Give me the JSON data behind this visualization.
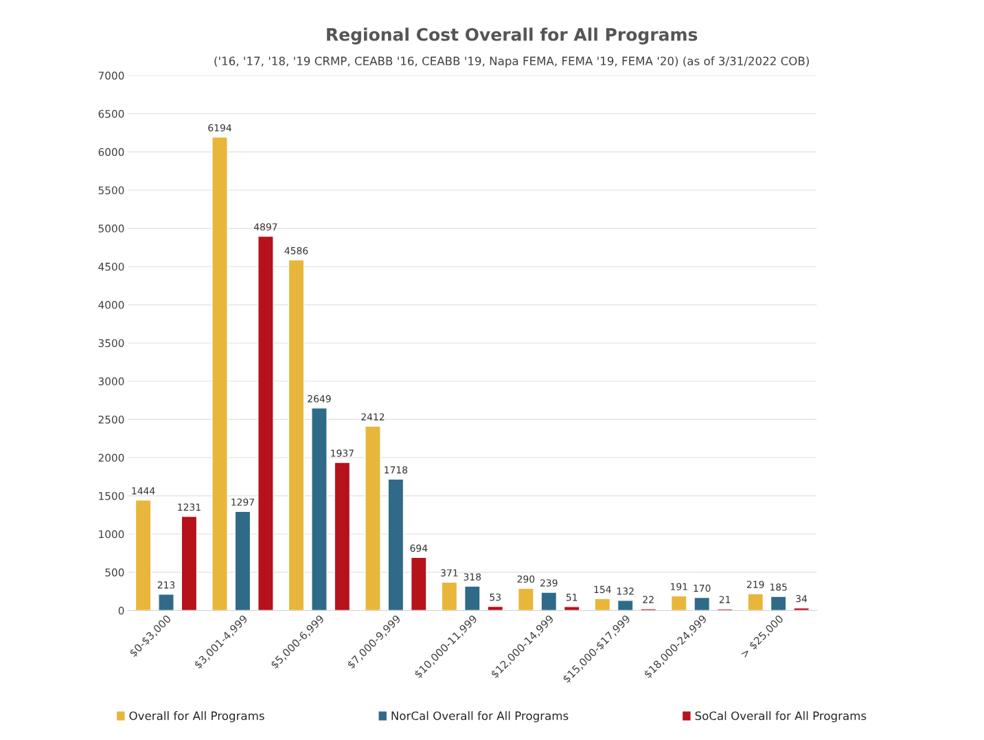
{
  "chart_data": {
    "type": "bar",
    "title": "Regional Cost Overall for All Programs",
    "subtitle": "('16, '17, '18, '19 CRMP, CEABB '16, CEABB '19, Napa FEMA, FEMA '19, FEMA '20) (as of 3/31/2022 COB)",
    "categories": [
      "$0-$3,000",
      "$3,001-4,999",
      "$5,000-6,999",
      "$7,000-9,999",
      "$10,000-11,999",
      "$12,000-14,999",
      "$15,000-$17,999",
      "$18,000-24,999",
      "> $25,000"
    ],
    "series": [
      {
        "name": "Overall for All Programs",
        "color": "#e8b63a",
        "values": [
          1444,
          6194,
          4586,
          2412,
          371,
          290,
          154,
          191,
          219
        ]
      },
      {
        "name": "NorCal Overall for All Programs",
        "color": "#2f6b88",
        "values": [
          213,
          1297,
          2649,
          1718,
          318,
          239,
          132,
          170,
          185
        ]
      },
      {
        "name": "SoCal Overall for All Programs",
        "color": "#b5121b",
        "values": [
          1231,
          4897,
          1937,
          694,
          53,
          51,
          22,
          21,
          34
        ]
      }
    ],
    "ylim": [
      0,
      7000
    ],
    "yticks": [
      0,
      500,
      1000,
      1500,
      2000,
      2500,
      3000,
      3500,
      4000,
      4500,
      5000,
      5500,
      6000,
      6500,
      7000
    ],
    "grid": "y",
    "legend": "bottom",
    "data_labels": true
  }
}
